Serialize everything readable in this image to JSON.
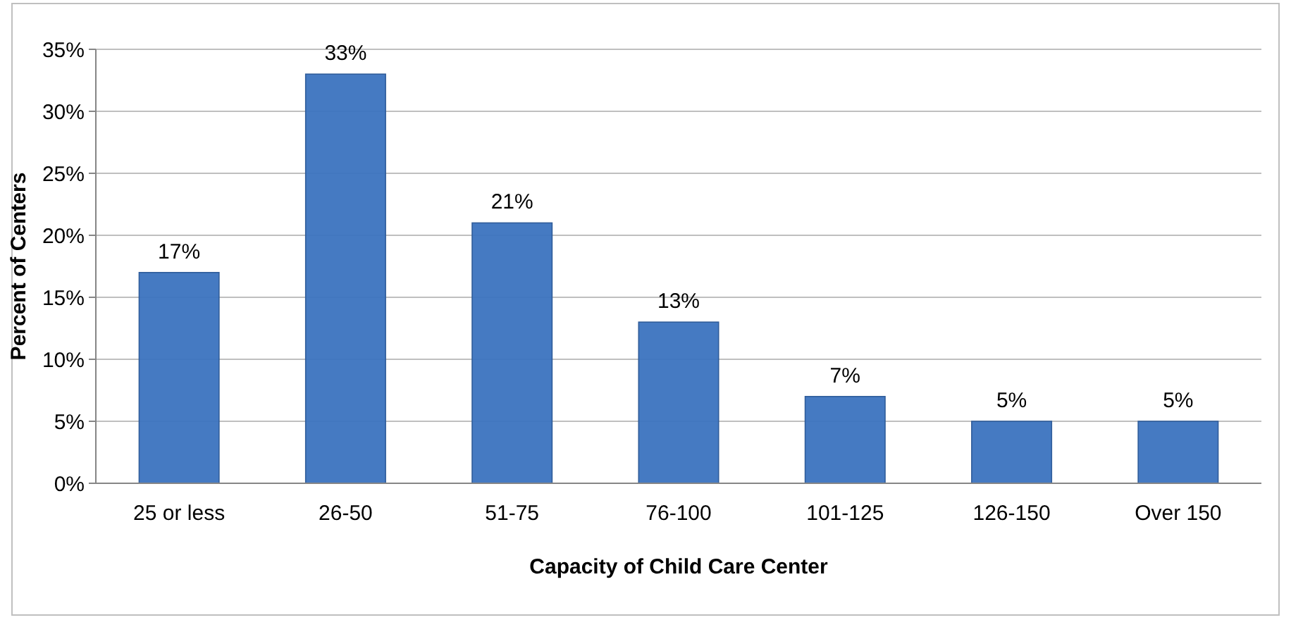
{
  "chart_data": {
    "type": "bar",
    "xlabel": "Capacity of Child Care Center",
    "ylabel": "Percent of Centers",
    "categories": [
      "25 or less",
      "26-50",
      "51-75",
      "76-100",
      "101-125",
      "126-150",
      "Over 150"
    ],
    "values": [
      17,
      33,
      21,
      13,
      7,
      5,
      5
    ],
    "value_labels": [
      "17%",
      "33%",
      "21%",
      "13%",
      "7%",
      "5%",
      "5%"
    ],
    "color": "#3b73bf",
    "ylim": [
      0,
      35
    ],
    "yticks": [
      {
        "value": 0,
        "label": "0%"
      },
      {
        "value": 5,
        "label": "5%"
      },
      {
        "value": 10,
        "label": "10%"
      },
      {
        "value": 15,
        "label": "15%"
      },
      {
        "value": 20,
        "label": "20%"
      },
      {
        "value": 25,
        "label": "25%"
      },
      {
        "value": 30,
        "label": "30%"
      },
      {
        "value": 35,
        "label": "35%"
      }
    ],
    "grid": "y"
  }
}
